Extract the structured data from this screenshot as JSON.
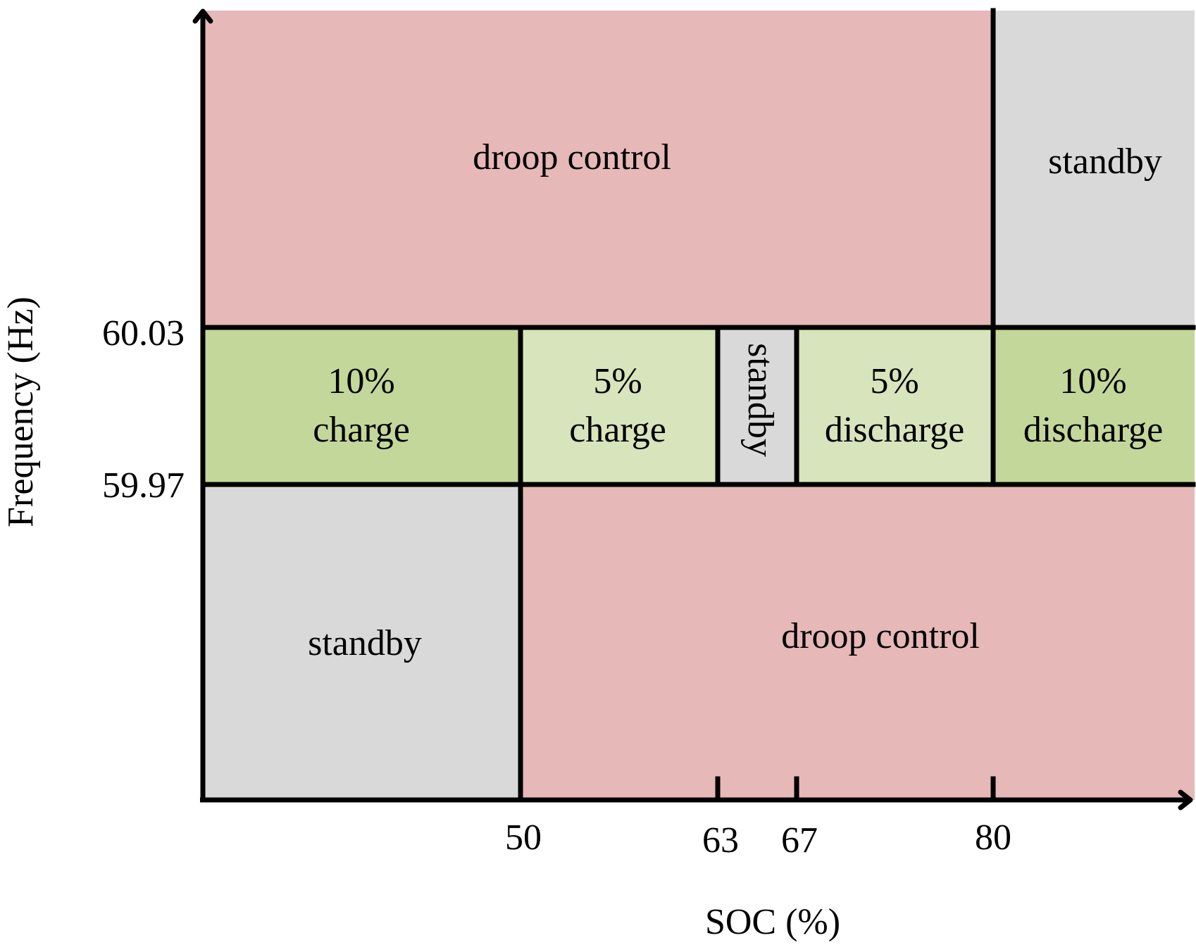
{
  "colors": {
    "droop": "#e6b8b7",
    "standby": "#d9d9d9",
    "charge_10": "#c4d79b",
    "charge_5": "#d8e4bc",
    "line": "#000000"
  },
  "axes": {
    "x_title": "SOC (%)",
    "y_title": "Frequency (Hz)",
    "x_ticks": [
      "50",
      "63",
      "67",
      "80"
    ],
    "y_ticks": [
      "60.03",
      "59.97"
    ]
  },
  "zones": {
    "top_droop": "droop control",
    "top_standby": "standby",
    "mid_10_charge": [
      "10%",
      "charge"
    ],
    "mid_5_charge": [
      "5%",
      "charge"
    ],
    "mid_standby": "standby",
    "mid_5_discharge": [
      "5%",
      "discharge"
    ],
    "mid_10_discharge": [
      "10%",
      "discharge"
    ],
    "bottom_standby": "standby",
    "bottom_droop": "droop control"
  }
}
